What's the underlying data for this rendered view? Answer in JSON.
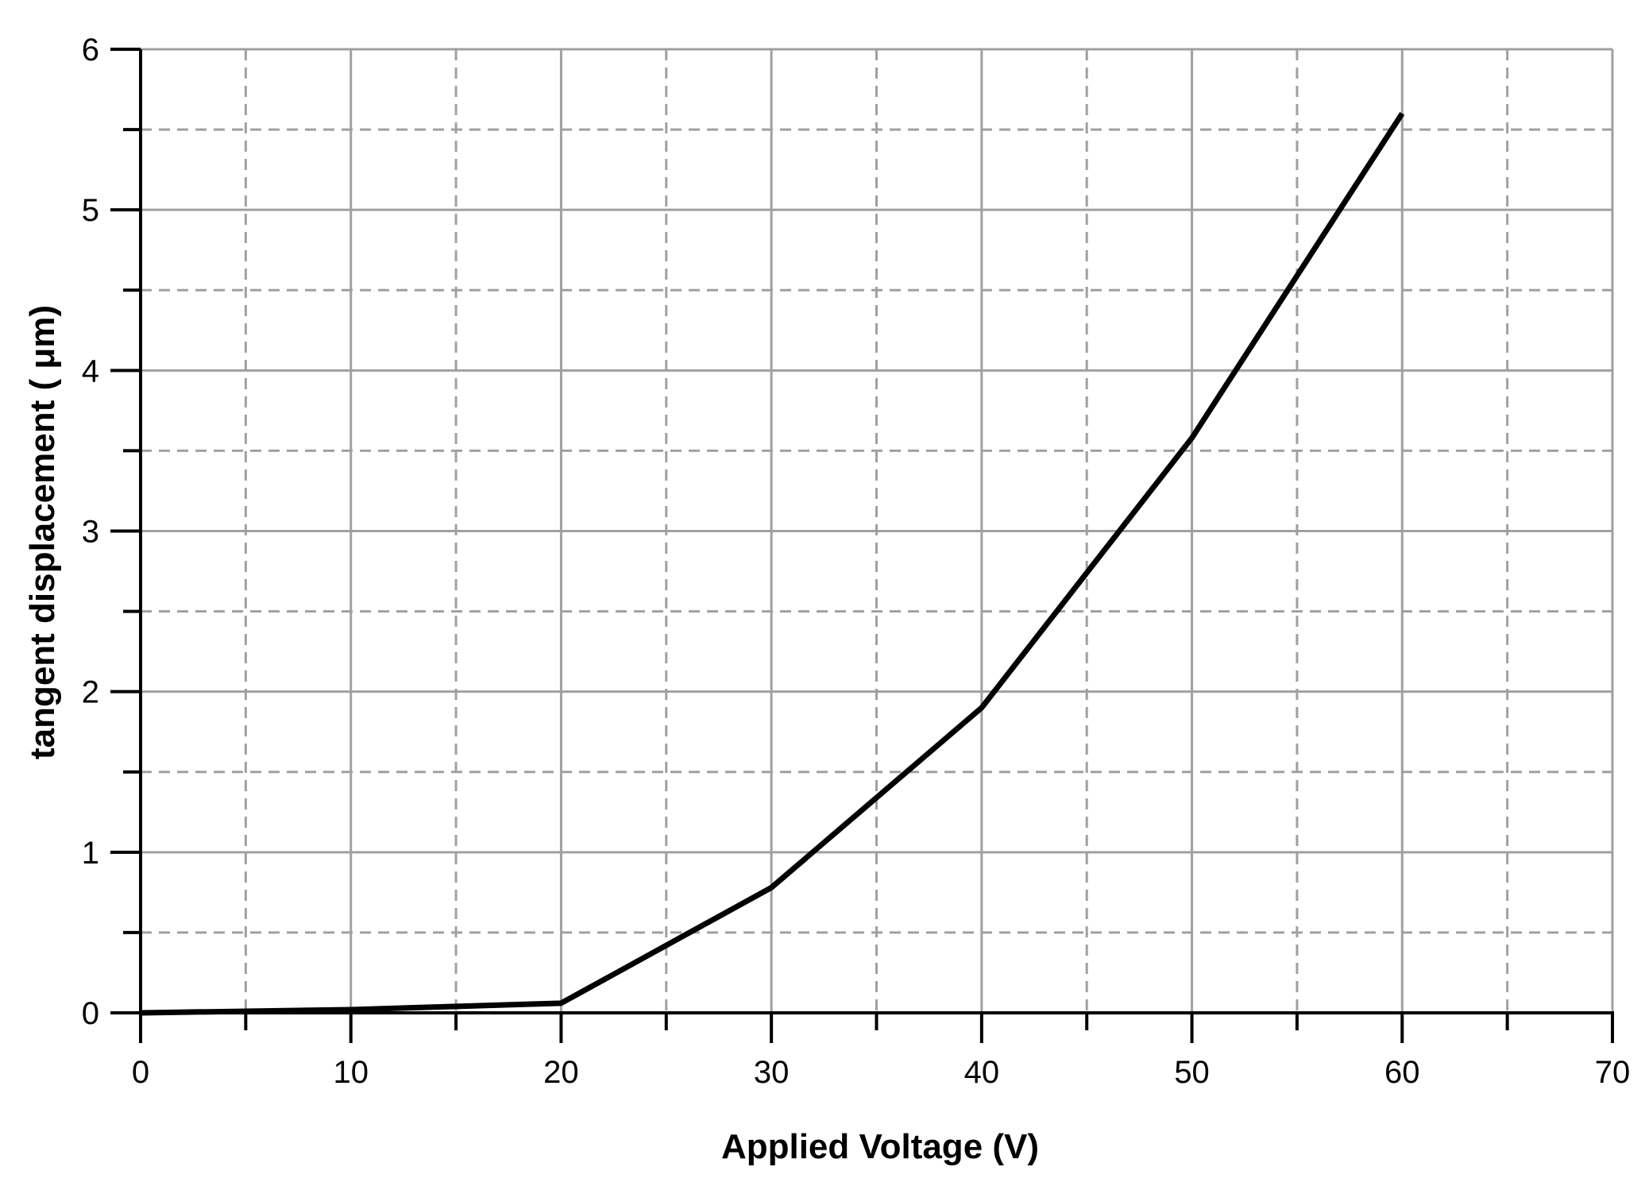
{
  "chart_data": {
    "type": "line",
    "xlabel": "Applied Voltage (V)",
    "ylabel": "tangent displacement ( μm)",
    "xlim": [
      0,
      70
    ],
    "ylim": [
      0,
      6
    ],
    "x_ticks": [
      0,
      10,
      20,
      30,
      40,
      50,
      60,
      70
    ],
    "y_ticks": [
      0,
      1,
      2,
      3,
      4,
      5,
      6
    ],
    "x_minor_ticks": [
      5,
      15,
      25,
      35,
      45,
      55,
      65
    ],
    "y_minor_ticks": [
      0.5,
      1.5,
      2.5,
      3.5,
      4.5,
      5.5
    ],
    "grid": true,
    "legend": "none",
    "colors": {
      "line": "#000000",
      "grid": "#a0a0a0",
      "axis": "#000000"
    },
    "series": [
      {
        "x": [
          0,
          10,
          20,
          30,
          40,
          50,
          60
        ],
        "y": [
          0.0,
          0.02,
          0.06,
          0.78,
          1.9,
          3.58,
          5.6
        ]
      }
    ]
  }
}
